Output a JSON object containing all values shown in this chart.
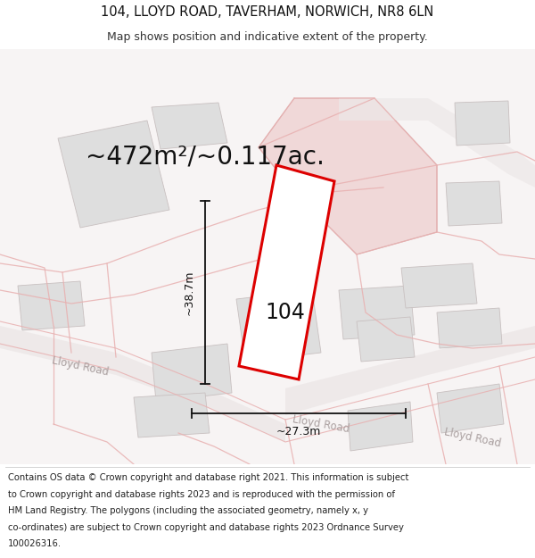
{
  "title_line1": "104, LLOYD ROAD, TAVERHAM, NORWICH, NR8 6LN",
  "title_line2": "Map shows position and indicative extent of the property.",
  "area_text": "~472m²/~0.117ac.",
  "label_104": "104",
  "dim_height": "~38.7m",
  "dim_width": "~27.3m",
  "footer_lines": [
    "Contains OS data © Crown copyright and database right 2021. This information is subject",
    "to Crown copyright and database rights 2023 and is reproduced with the permission of",
    "HM Land Registry. The polygons (including the associated geometry, namely x, y",
    "co-ordinates) are subject to Crown copyright and database rights 2023 Ordnance Survey",
    "100026316."
  ],
  "map_bg": "#f7f4f4",
  "plot_fill": "#ffffff",
  "plot_edge": "#dd0000",
  "road_label_color": "#aaa0a0",
  "road_fill": "#ede8e8",
  "building_fill": "#dedede",
  "building_edge": "#c8c0c0",
  "highlight_fill": "#f0d8d8",
  "highlight_edge": "#d8b0b0",
  "pink_line": "#e8b0b0",
  "dim_color": "#111111",
  "area_fontsize": 20,
  "label_fontsize": 17,
  "title_fontsize": 10.5,
  "sub_fontsize": 9,
  "footer_fontsize": 7.2,
  "road_label_fontsize": 8.5
}
